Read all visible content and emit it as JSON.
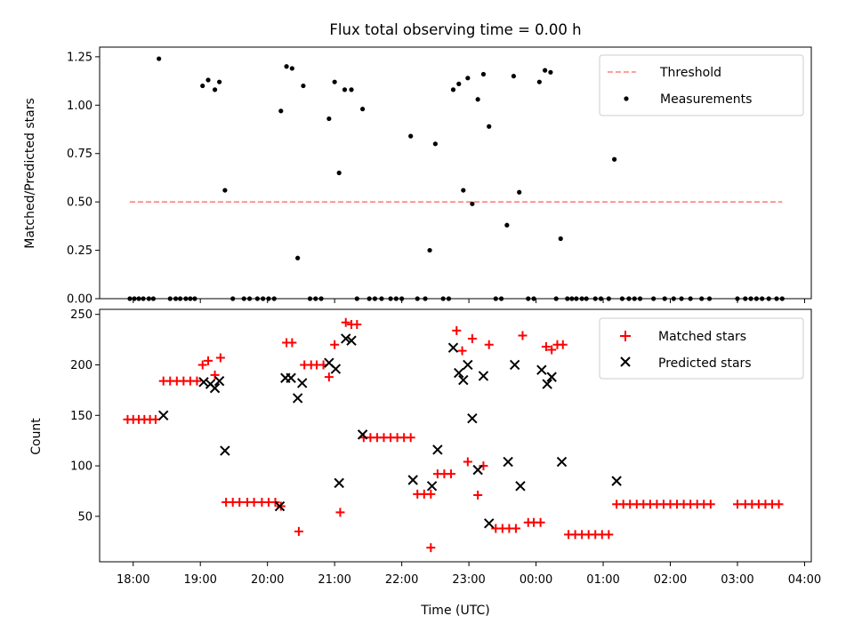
{
  "chart_data": [
    {
      "type": "scatter",
      "title": "Flux total observing time = 0.00 h",
      "ylabel": "Matched/Predicted stars",
      "ylim": [
        0,
        1.3
      ],
      "yticks": [
        0.0,
        0.25,
        0.5,
        0.75,
        1.0,
        1.25
      ],
      "ytick_labels": [
        "0.00",
        "0.25",
        "0.50",
        "0.75",
        "1.00",
        "1.25"
      ],
      "x_hours": [
        17.5,
        28.1
      ],
      "legend_position": "top-right",
      "grid": false,
      "threshold": {
        "name": "Threshold",
        "value": 0.5,
        "x_start": "17:57",
        "x_end": "03:40",
        "color": "#ff7f7f"
      },
      "series": [
        {
          "name": "Measurements",
          "color": "#000000",
          "points": [
            [
              "17:57",
              0
            ],
            [
              "18:01",
              0
            ],
            [
              "18:05",
              0
            ],
            [
              "18:09",
              0
            ],
            [
              "18:14",
              0
            ],
            [
              "18:18",
              0
            ],
            [
              "18:23",
              1.24
            ],
            [
              "18:33",
              0
            ],
            [
              "18:38",
              0
            ],
            [
              "18:42",
              0
            ],
            [
              "18:47",
              0
            ],
            [
              "18:51",
              0
            ],
            [
              "18:55",
              0
            ],
            [
              "19:02",
              1.1
            ],
            [
              "19:07",
              1.13
            ],
            [
              "19:13",
              1.08
            ],
            [
              "19:17",
              1.12
            ],
            [
              "19:22",
              0.56
            ],
            [
              "19:29",
              0
            ],
            [
              "19:39",
              0
            ],
            [
              "19:44",
              0
            ],
            [
              "19:51",
              0
            ],
            [
              "19:56",
              0
            ],
            [
              "20:01",
              0
            ],
            [
              "20:06",
              0
            ],
            [
              "20:12",
              0.97
            ],
            [
              "20:17",
              1.2
            ],
            [
              "20:22",
              1.19
            ],
            [
              "20:27",
              0.21
            ],
            [
              "20:32",
              1.1
            ],
            [
              "20:38",
              0
            ],
            [
              "20:43",
              0
            ],
            [
              "20:48",
              0
            ],
            [
              "20:55",
              0.93
            ],
            [
              "21:00",
              1.12
            ],
            [
              "21:04",
              0.65
            ],
            [
              "21:09",
              1.08
            ],
            [
              "21:15",
              1.08
            ],
            [
              "21:20",
              0
            ],
            [
              "21:25",
              0.98
            ],
            [
              "21:31",
              0
            ],
            [
              "21:36",
              0
            ],
            [
              "21:42",
              0
            ],
            [
              "21:50",
              0
            ],
            [
              "21:55",
              0
            ],
            [
              "22:00",
              0
            ],
            [
              "22:08",
              0.84
            ],
            [
              "22:14",
              0
            ],
            [
              "22:21",
              0
            ],
            [
              "22:25",
              0.25
            ],
            [
              "22:30",
              0.8
            ],
            [
              "22:37",
              0
            ],
            [
              "22:42",
              0
            ],
            [
              "22:46",
              1.08
            ],
            [
              "22:51",
              1.11
            ],
            [
              "22:55",
              0.56
            ],
            [
              "22:59",
              1.14
            ],
            [
              "23:03",
              0.49
            ],
            [
              "23:08",
              1.03
            ],
            [
              "23:13",
              1.16
            ],
            [
              "23:18",
              0.89
            ],
            [
              "23:24",
              0
            ],
            [
              "23:29",
              0
            ],
            [
              "23:34",
              0.38
            ],
            [
              "23:40",
              1.15
            ],
            [
              "23:45",
              0.55
            ],
            [
              "23:53",
              0
            ],
            [
              "23:58",
              0
            ],
            [
              "00:03",
              1.12
            ],
            [
              "00:08",
              1.18
            ],
            [
              "00:13",
              1.17
            ],
            [
              "00:18",
              0
            ],
            [
              "00:22",
              0.31
            ],
            [
              "00:28",
              0
            ],
            [
              "00:32",
              0
            ],
            [
              "00:36",
              0
            ],
            [
              "00:41",
              0
            ],
            [
              "00:45",
              0
            ],
            [
              "00:53",
              0
            ],
            [
              "00:58",
              0
            ],
            [
              "01:05",
              0
            ],
            [
              "01:10",
              0.72
            ],
            [
              "01:17",
              0
            ],
            [
              "01:23",
              0
            ],
            [
              "01:28",
              0
            ],
            [
              "01:33",
              0
            ],
            [
              "01:45",
              0
            ],
            [
              "01:55",
              0
            ],
            [
              "02:03",
              0
            ],
            [
              "02:10",
              0
            ],
            [
              "02:18",
              0
            ],
            [
              "02:28",
              0
            ],
            [
              "02:35",
              0
            ],
            [
              "03:00",
              0
            ],
            [
              "03:07",
              0
            ],
            [
              "03:12",
              0
            ],
            [
              "03:17",
              0
            ],
            [
              "03:22",
              0
            ],
            [
              "03:28",
              0
            ],
            [
              "03:35",
              0
            ],
            [
              "03:40",
              0
            ]
          ]
        }
      ]
    },
    {
      "type": "scatter",
      "title": "",
      "xlabel": "Time (UTC)",
      "ylabel": "Count",
      "ylim": [
        5,
        255
      ],
      "yticks": [
        50,
        100,
        150,
        200,
        250
      ],
      "ytick_labels": [
        "50",
        "100",
        "150",
        "200",
        "250"
      ],
      "x_hours": [
        17.5,
        28.1
      ],
      "xtick_labels": [
        "18:00",
        "19:00",
        "20:00",
        "21:00",
        "22:00",
        "23:00",
        "00:00",
        "01:00",
        "02:00",
        "03:00",
        "04:00"
      ],
      "legend_position": "top-right",
      "grid": false,
      "series": [
        {
          "name": "Matched stars",
          "marker": "plus",
          "color": "#ff0000",
          "points": [
            [
              "17:55",
              146
            ],
            [
              "18:00",
              146
            ],
            [
              "18:05",
              146
            ],
            [
              "18:10",
              146
            ],
            [
              "18:15",
              146
            ],
            [
              "18:20",
              146
            ],
            [
              "18:27",
              184
            ],
            [
              "18:33",
              184
            ],
            [
              "18:39",
              184
            ],
            [
              "18:45",
              184
            ],
            [
              "18:51",
              184
            ],
            [
              "18:57",
              184
            ],
            [
              "19:02",
              200
            ],
            [
              "19:07",
              204
            ],
            [
              "19:13",
              190
            ],
            [
              "19:18",
              207
            ],
            [
              "19:23",
              64
            ],
            [
              "19:29",
              64
            ],
            [
              "19:35",
              64
            ],
            [
              "19:42",
              64
            ],
            [
              "19:48",
              64
            ],
            [
              "19:55",
              64
            ],
            [
              "20:01",
              64
            ],
            [
              "20:07",
              64
            ],
            [
              "20:12",
              60
            ],
            [
              "20:17",
              222
            ],
            [
              "20:22",
              222
            ],
            [
              "20:28",
              35
            ],
            [
              "20:33",
              200
            ],
            [
              "20:39",
              200
            ],
            [
              "20:44",
              200
            ],
            [
              "20:50",
              200
            ],
            [
              "20:55",
              188
            ],
            [
              "21:00",
              220
            ],
            [
              "21:05",
              54
            ],
            [
              "21:10",
              242
            ],
            [
              "21:15",
              240
            ],
            [
              "21:20",
              240
            ],
            [
              "21:26",
              128
            ],
            [
              "21:32",
              128
            ],
            [
              "21:38",
              128
            ],
            [
              "21:44",
              128
            ],
            [
              "21:50",
              128
            ],
            [
              "21:56",
              128
            ],
            [
              "22:02",
              128
            ],
            [
              "22:08",
              128
            ],
            [
              "22:14",
              72
            ],
            [
              "22:20",
              72
            ],
            [
              "22:26",
              72
            ],
            [
              "22:26",
              19
            ],
            [
              "22:32",
              92
            ],
            [
              "22:38",
              92
            ],
            [
              "22:44",
              92
            ],
            [
              "22:49",
              234
            ],
            [
              "22:54",
              214
            ],
            [
              "22:59",
              104
            ],
            [
              "23:03",
              226
            ],
            [
              "23:08",
              71
            ],
            [
              "23:13",
              100
            ],
            [
              "23:18",
              220
            ],
            [
              "23:24",
              38
            ],
            [
              "23:30",
              38
            ],
            [
              "23:36",
              38
            ],
            [
              "23:42",
              38
            ],
            [
              "23:48",
              229
            ],
            [
              "23:53",
              44
            ],
            [
              "23:58",
              44
            ],
            [
              "00:04",
              44
            ],
            [
              "00:09",
              218
            ],
            [
              "00:14",
              215
            ],
            [
              "00:19",
              220
            ],
            [
              "00:24",
              220
            ],
            [
              "00:29",
              32
            ],
            [
              "00:35",
              32
            ],
            [
              "00:41",
              32
            ],
            [
              "00:47",
              32
            ],
            [
              "00:53",
              32
            ],
            [
              "00:59",
              32
            ],
            [
              "01:05",
              32
            ],
            [
              "01:12",
              62
            ],
            [
              "01:18",
              62
            ],
            [
              "01:24",
              62
            ],
            [
              "01:30",
              62
            ],
            [
              "01:36",
              62
            ],
            [
              "01:42",
              62
            ],
            [
              "01:48",
              62
            ],
            [
              "01:54",
              62
            ],
            [
              "02:00",
              62
            ],
            [
              "02:06",
              62
            ],
            [
              "02:12",
              62
            ],
            [
              "02:18",
              62
            ],
            [
              "02:24",
              62
            ],
            [
              "02:30",
              62
            ],
            [
              "02:36",
              62
            ],
            [
              "03:00",
              62
            ],
            [
              "03:07",
              62
            ],
            [
              "03:13",
              62
            ],
            [
              "03:19",
              62
            ],
            [
              "03:25",
              62
            ],
            [
              "03:31",
              62
            ],
            [
              "03:37",
              62
            ]
          ]
        },
        {
          "name": "Predicted stars",
          "marker": "x",
          "color": "#000000",
          "points": [
            [
              "18:27",
              150
            ],
            [
              "19:03",
              183
            ],
            [
              "19:09",
              181
            ],
            [
              "19:13",
              177
            ],
            [
              "19:17",
              184
            ],
            [
              "19:22",
              115
            ],
            [
              "20:11",
              60
            ],
            [
              "20:16",
              187
            ],
            [
              "20:21",
              187
            ],
            [
              "20:27",
              167
            ],
            [
              "20:31",
              182
            ],
            [
              "20:55",
              202
            ],
            [
              "21:01",
              196
            ],
            [
              "21:04",
              83
            ],
            [
              "21:10",
              226
            ],
            [
              "21:15",
              224
            ],
            [
              "21:25",
              131
            ],
            [
              "22:10",
              86
            ],
            [
              "22:27",
              80
            ],
            [
              "22:32",
              116
            ],
            [
              "22:46",
              217
            ],
            [
              "22:51",
              192
            ],
            [
              "22:55",
              185
            ],
            [
              "22:59",
              200
            ],
            [
              "23:03",
              147
            ],
            [
              "23:08",
              96
            ],
            [
              "23:13",
              189
            ],
            [
              "23:18",
              43
            ],
            [
              "23:35",
              104
            ],
            [
              "23:41",
              200
            ],
            [
              "23:46",
              80
            ],
            [
              "24:05",
              195
            ],
            [
              "24:10",
              181
            ],
            [
              "24:14",
              188
            ],
            [
              "24:23",
              104
            ],
            [
              "25:12",
              85
            ]
          ]
        }
      ]
    }
  ]
}
